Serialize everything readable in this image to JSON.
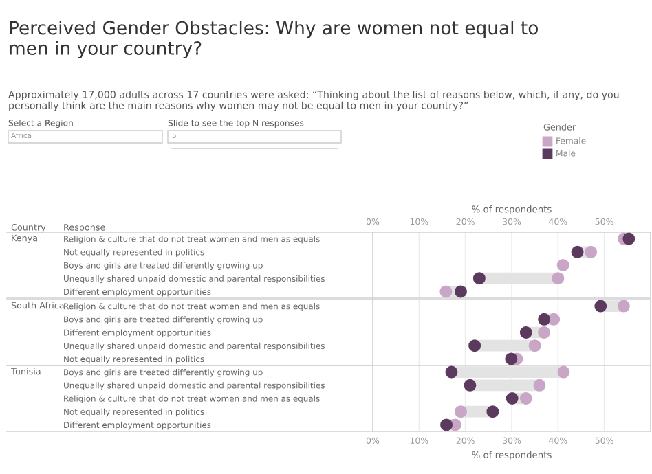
{
  "chart_data": [
    {
      "type": "scatter",
      "orientation": "horizontal",
      "title": "Kenya",
      "categories": [
        "Religion & culture that do not treat women and men as equals",
        "Not equally represented in politics",
        "Boys and girls are treated differently growing up",
        "Unequally shared unpaid domestic and parental responsibilities",
        "Different employment opportunities"
      ],
      "series": [
        {
          "name": "Female",
          "color": "#c9a6c6",
          "values": [
            54.2,
            47.1,
            41.1,
            40.0,
            15.8
          ]
        },
        {
          "name": "Male",
          "color": "#5b3a5e",
          "values": [
            55.3,
            44.2,
            null,
            23.0,
            19.0
          ]
        }
      ],
      "xlim": [
        0,
        60
      ],
      "xticks": [
        {
          "value": 0,
          "label": "0%"
        },
        {
          "value": 10,
          "label": "10%"
        },
        {
          "value": 20,
          "label": "20%"
        },
        {
          "value": 30,
          "label": "30%"
        },
        {
          "value": 40,
          "label": "40%"
        },
        {
          "value": 50,
          "label": "50%"
        }
      ],
      "xlabel": "% of respondents",
      "grid": "x",
      "legend": "top right",
      "legend_title": "Gender",
      "marker": "circle",
      "annotations": [
        "Perceived Gender Obstacles: Why are women not equal to men in your country?",
        "Approximately 17,000 adults across 17 countries were asked: “Thinking about the list of reasons below, which, if any, do you personally think are the main reasons why women may not be equal to men in your country?”",
        "Select a Region",
        "Africa",
        "Slide to see the top N responses",
        "5",
        "Country",
        "Response"
      ]
    },
    {
      "type": "scatter",
      "orientation": "horizontal",
      "title": "South Africa",
      "categories": [
        "Religion & culture that do not treat women and men as equals",
        "Boys and girls are treated differently growing up",
        "Different employment opportunities",
        "Unequally shared unpaid domestic and parental responsibilities",
        "Not equally represented in politics"
      ],
      "series": [
        {
          "color": "#c9a6c6",
          "values": [
            54.2,
            39.1,
            37.0,
            35.0,
            31.1
          ]
        },
        {
          "color": "#5b3a5e",
          "values": [
            49.2,
            37.0,
            33.1,
            22.0,
            29.9
          ]
        }
      ],
      "xlim": [
        0,
        60
      ],
      "xticks": [
        {
          "value": 0,
          "label": null
        },
        {
          "value": 10,
          "label": null
        },
        {
          "value": 20,
          "label": null
        },
        {
          "value": 30,
          "label": null
        },
        {
          "value": 40,
          "label": null
        },
        {
          "value": 50,
          "label": null
        }
      ],
      "tick_labels": "y",
      "grid": "x",
      "marker": "circle"
    },
    {
      "type": "scatter",
      "orientation": "horizontal",
      "title": "Tunisia",
      "categories": [
        "Boys and girls are treated differently growing up",
        "Unequally shared unpaid domestic and parental responsibilities",
        "Religion & culture that do not treat women and men as equals",
        "Not equally represented in politics",
        "Different employment opportunities"
      ],
      "series": [
        {
          "color": "#c9a6c6",
          "values": [
            41.2,
            36.0,
            33.1,
            19.0,
            17.8
          ]
        },
        {
          "color": "#5b3a5e",
          "values": [
            17.0,
            21.0,
            30.1,
            25.9,
            15.9
          ]
        }
      ],
      "xlim": [
        0,
        60
      ],
      "xticks": [
        {
          "value": 0,
          "label": "0%"
        },
        {
          "value": 10,
          "label": "10%"
        },
        {
          "value": 20,
          "label": "20%"
        },
        {
          "value": 30,
          "label": "30%"
        },
        {
          "value": 40,
          "label": "40%"
        },
        {
          "value": 50,
          "label": "50%"
        }
      ],
      "xlabel": "% of respondents",
      "grid": "x",
      "marker": "circle"
    }
  ]
}
